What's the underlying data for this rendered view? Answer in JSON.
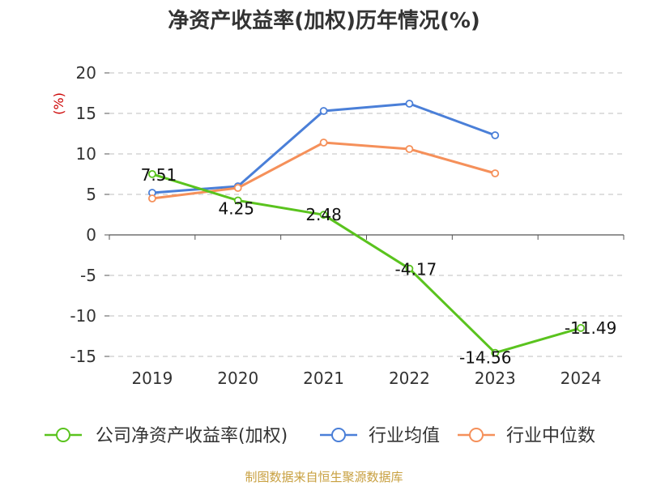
{
  "chart_data": {
    "type": "line",
    "title": "净资产收益率(加权)历年情况(%)",
    "ylabel": "(%)",
    "xlabel": "",
    "categories": [
      "2019",
      "2020",
      "2021",
      "2022",
      "2023",
      "2024"
    ],
    "ylim": [
      -15,
      20
    ],
    "yticks": [
      20,
      15,
      10,
      5,
      0,
      -5,
      -10,
      -15
    ],
    "grid": true,
    "legend_position": "bottom",
    "series": [
      {
        "name": "公司净资产收益率(加权)",
        "color": "#5ac31e",
        "values": [
          7.51,
          4.25,
          2.48,
          -4.17,
          -14.56,
          -11.49
        ],
        "labels": [
          "7.51",
          "4.25",
          "2.48",
          "-4.17",
          "-14.56",
          "-11.49"
        ]
      },
      {
        "name": "行业均值",
        "color": "#4a7fd8",
        "values": [
          5.2,
          6.0,
          15.3,
          16.2,
          12.3,
          null
        ]
      },
      {
        "name": "行业中位数",
        "color": "#f5905a",
        "values": [
          4.5,
          5.8,
          11.4,
          10.6,
          7.6,
          null
        ]
      }
    ]
  },
  "source": "制图数据来自恒生聚源数据库"
}
